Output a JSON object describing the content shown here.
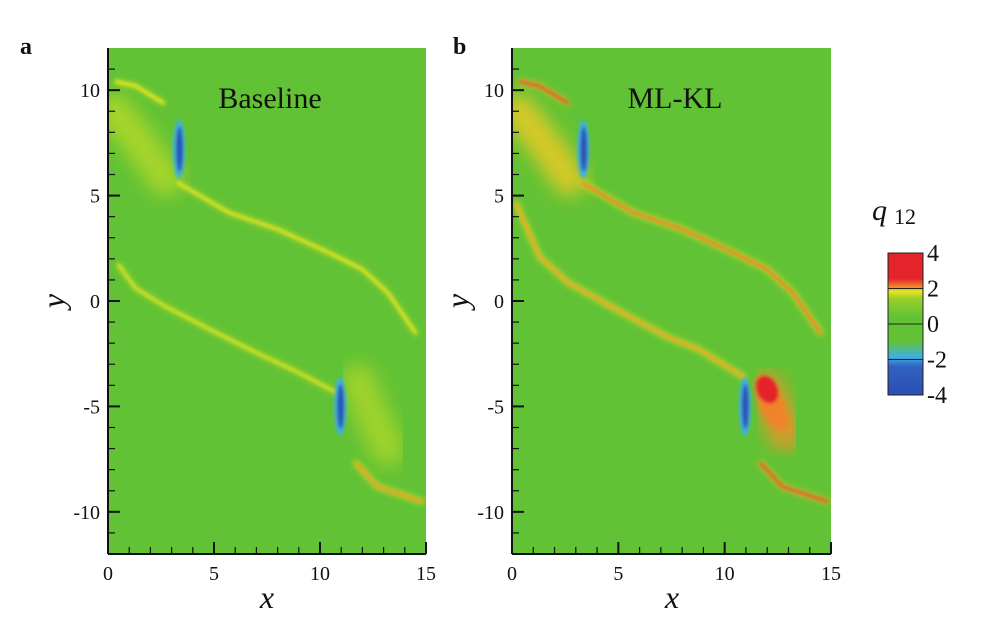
{
  "chart_data": [
    {
      "type": "heatmap",
      "panel_label": "a",
      "title": "Baseline",
      "xlabel": "x",
      "ylabel": "y",
      "xlim": [
        0,
        15
      ],
      "ylim": [
        -12,
        12
      ],
      "xticks": [
        "0",
        "5",
        "10",
        "15"
      ],
      "yticks": [
        "10",
        "5",
        "0",
        "-5",
        "-10"
      ],
      "background_value": 0,
      "features": [
        {
          "kind": "streak",
          "value": 1.5,
          "points": [
            [
              0.4,
              10.4
            ],
            [
              1.3,
              10.2
            ],
            [
              2.6,
              9.4
            ]
          ]
        },
        {
          "kind": "streak",
          "value": 1.4,
          "points": [
            [
              3.3,
              5.6
            ],
            [
              5.7,
              4.2
            ],
            [
              8.0,
              3.4
            ],
            [
              10.4,
              2.3
            ],
            [
              12.0,
              1.5
            ],
            [
              13.2,
              0.4
            ],
            [
              14.5,
              -1.5
            ]
          ]
        },
        {
          "kind": "streak",
          "value": 1.3,
          "points": [
            [
              0.5,
              1.7
            ],
            [
              1.3,
              0.6
            ],
            [
              2.6,
              -0.2
            ],
            [
              4.9,
              -1.4
            ],
            [
              7.3,
              -2.6
            ],
            [
              8.8,
              -3.3
            ],
            [
              10.9,
              -4.4
            ]
          ]
        },
        {
          "kind": "streak",
          "value": 2.3,
          "points": [
            [
              11.7,
              -7.7
            ],
            [
              12.7,
              -8.8
            ],
            [
              14.8,
              -9.5
            ]
          ]
        },
        {
          "kind": "diffuse",
          "value": 0.9,
          "points": [
            [
              0.3,
              9.0
            ],
            [
              1.5,
              7.5
            ],
            [
              2.7,
              5.8
            ]
          ]
        },
        {
          "kind": "diffuse",
          "value": 0.8,
          "points": [
            [
              11.8,
              -3.8
            ],
            [
              12.5,
              -5.5
            ],
            [
              13.2,
              -7.0
            ]
          ]
        },
        {
          "kind": "vortex",
          "value": -4,
          "center": [
            3.35,
            7.2
          ],
          "height": 2.4
        },
        {
          "kind": "vortex",
          "value": -4,
          "center": [
            10.95,
            -5.0
          ],
          "height": 2.4
        }
      ]
    },
    {
      "type": "heatmap",
      "panel_label": "b",
      "title": "ML-KL",
      "xlabel": "x",
      "ylabel": "y",
      "xlim": [
        0,
        15
      ],
      "ylim": [
        -12,
        12
      ],
      "xticks": [
        "0",
        "5",
        "10",
        "15"
      ],
      "yticks": [
        "10",
        "5",
        "0",
        "-5",
        "-10"
      ],
      "background_value": 0,
      "features": [
        {
          "kind": "streak",
          "value": 3.2,
          "points": [
            [
              0.4,
              10.4
            ],
            [
              1.3,
              10.2
            ],
            [
              2.6,
              9.4
            ]
          ]
        },
        {
          "kind": "streak",
          "value": 2.6,
          "points": [
            [
              3.3,
              5.6
            ],
            [
              5.7,
              4.2
            ],
            [
              8.0,
              3.4
            ],
            [
              10.4,
              2.3
            ],
            [
              12.0,
              1.5
            ],
            [
              13.2,
              0.4
            ],
            [
              14.5,
              -1.5
            ]
          ]
        },
        {
          "kind": "streak",
          "value": 2.2,
          "points": [
            [
              0.2,
              4.6
            ],
            [
              1.3,
              2.1
            ],
            [
              2.6,
              0.9
            ],
            [
              4.9,
              -0.4
            ],
            [
              7.3,
              -1.7
            ],
            [
              8.8,
              -2.3
            ],
            [
              10.9,
              -3.6
            ]
          ]
        },
        {
          "kind": "streak",
          "value": 3.2,
          "points": [
            [
              11.7,
              -7.7
            ],
            [
              12.7,
              -8.8
            ],
            [
              14.8,
              -9.5
            ]
          ]
        },
        {
          "kind": "diffuse",
          "value": 1.8,
          "points": [
            [
              0.3,
              9.0
            ],
            [
              1.5,
              7.5
            ],
            [
              2.7,
              5.8
            ]
          ]
        },
        {
          "kind": "diffuse",
          "value": 2.4,
          "points": [
            [
              12.0,
              -4.2
            ],
            [
              12.5,
              -5.4
            ],
            [
              12.9,
              -6.3
            ]
          ]
        },
        {
          "kind": "blob",
          "value": 4,
          "center": [
            12.0,
            -4.2
          ]
        },
        {
          "kind": "vortex",
          "value": -4,
          "center": [
            3.35,
            7.2
          ],
          "height": 2.4
        },
        {
          "kind": "vortex",
          "value": -4,
          "center": [
            10.95,
            -5.0
          ],
          "height": 2.4
        }
      ]
    }
  ],
  "colorbar": {
    "label": "q",
    "label_subscript": "12",
    "range": [
      -4,
      4
    ],
    "tick_labels": [
      "4",
      "2",
      "0",
      "-2",
      "-4"
    ],
    "contour_levels": [
      2,
      0,
      -2
    ],
    "colors": {
      "-4": "#2b4fb3",
      "-2": "#3fb0e0",
      "0": "#62c235",
      "1.5": "#e8e622",
      "2.5": "#f08a2c",
      "4": "#e4232a"
    }
  }
}
